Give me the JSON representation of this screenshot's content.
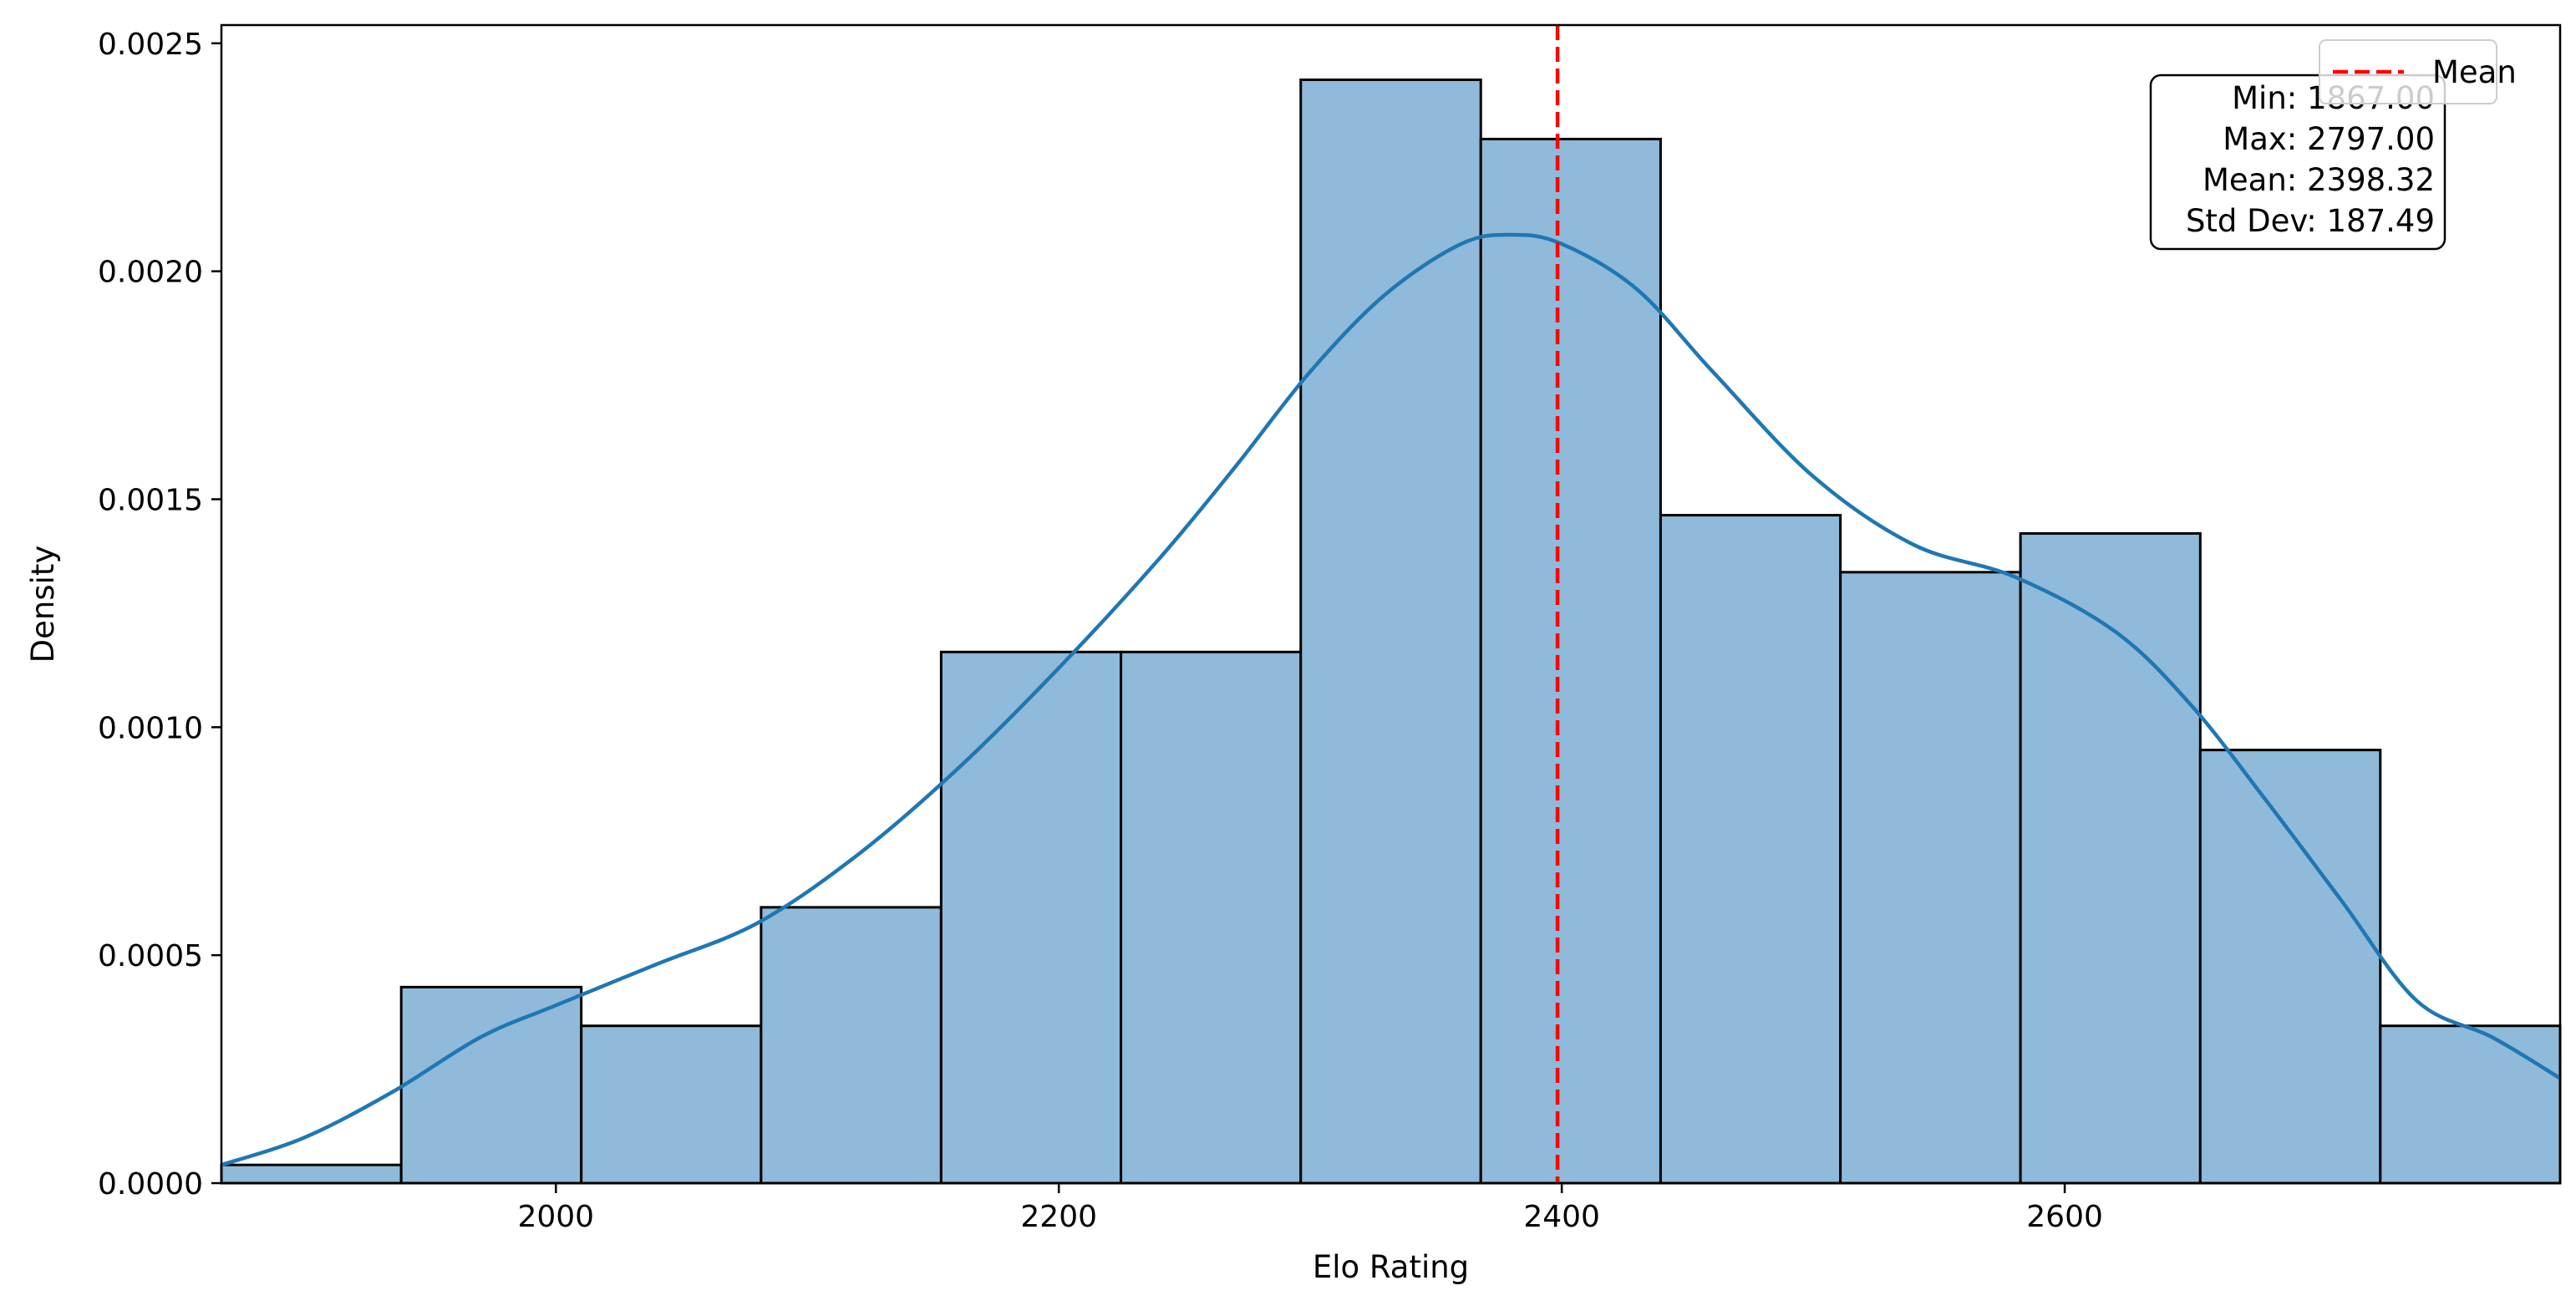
{
  "chart_data": {
    "type": "histogram",
    "xlabel": "Elo Rating",
    "ylabel": "Density",
    "xlim": [
      1867,
      2797
    ],
    "ylim": [
      0,
      0.00254
    ],
    "x_ticks": [
      2000,
      2200,
      2400,
      2600
    ],
    "x_tick_labels": [
      "2000",
      "2200",
      "2400",
      "2600"
    ],
    "y_ticks": [
      0,
      0.0005,
      0.001,
      0.0015,
      0.002,
      0.0025
    ],
    "y_tick_labels": [
      "0.0000",
      "0.0005",
      "0.0010",
      "0.0015",
      "0.0020",
      "0.0025"
    ],
    "bins": [
      {
        "x0": 1867.0,
        "x1": 1938.5,
        "density": 4e-05
      },
      {
        "x0": 1938.5,
        "x1": 2010.1,
        "density": 0.00043
      },
      {
        "x0": 2010.1,
        "x1": 2081.6,
        "density": 0.000345
      },
      {
        "x0": 2081.6,
        "x1": 2153.2,
        "density": 0.000605
      },
      {
        "x0": 2153.2,
        "x1": 2224.7,
        "density": 0.001165
      },
      {
        "x0": 2224.7,
        "x1": 2296.2,
        "density": 0.001165
      },
      {
        "x0": 2296.2,
        "x1": 2367.8,
        "density": 0.00242
      },
      {
        "x0": 2367.8,
        "x1": 2439.3,
        "density": 0.00229
      },
      {
        "x0": 2439.3,
        "x1": 2510.8,
        "density": 0.001465
      },
      {
        "x0": 2510.8,
        "x1": 2582.4,
        "density": 0.00134
      },
      {
        "x0": 2582.4,
        "x1": 2653.9,
        "density": 0.001425
      },
      {
        "x0": 2653.9,
        "x1": 2725.5,
        "density": 0.00095
      },
      {
        "x0": 2725.5,
        "x1": 2797.0,
        "density": 0.000345
      }
    ],
    "kde": {
      "x": [
        1867,
        1900,
        1935,
        1970,
        2000,
        2040,
        2080,
        2120,
        2160,
        2200,
        2240,
        2270,
        2300,
        2330,
        2360,
        2380,
        2400,
        2430,
        2460,
        2500,
        2540,
        2580,
        2620,
        2650,
        2680,
        2710,
        2740,
        2770,
        2797
      ],
      "y": [
        4e-05,
        0.0001,
        0.0002,
        0.00032,
        0.00039,
        0.00048,
        0.00057,
        0.00072,
        0.00091,
        0.00113,
        0.00137,
        0.00157,
        0.00178,
        0.00195,
        0.00206,
        0.00208,
        0.00206,
        0.00196,
        0.00178,
        0.00155,
        0.0014,
        0.00133,
        0.00121,
        0.00105,
        0.00084,
        0.00062,
        0.0004,
        0.00032,
        0.00023
      ]
    },
    "mean_line": {
      "x": 2398.32,
      "label": "Mean"
    },
    "stats_box": [
      "Min: 1867.00",
      "Max: 2797.00",
      "Mean: 2398.32",
      "Std Dev: 187.49"
    ],
    "legend": {
      "location": "top-right",
      "entries": [
        "Mean"
      ]
    },
    "colors": {
      "bar_fill": "#8fbad9",
      "bar_edge": "#000000",
      "kde": "#1f77b4",
      "mean": "#ff0000"
    }
  }
}
